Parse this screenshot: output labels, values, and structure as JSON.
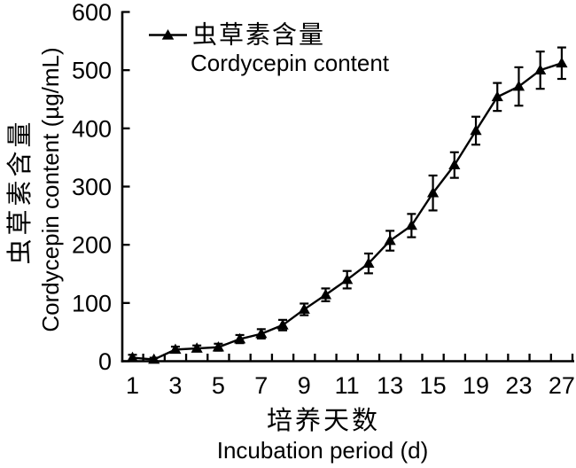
{
  "figure": {
    "background": "#ffffff",
    "ink_color": "#000000"
  },
  "legend": {
    "position": "top-left-inside",
    "marker": "line-with-filled-triangle",
    "label_zh": "虫草素含量",
    "label_en": "Cordycepin content"
  },
  "axes": {
    "y": {
      "title_zh": "虫草素含量",
      "title_en": "Cordycepin content (µg/mL)",
      "min": 0,
      "max": 600,
      "tick_step": 100,
      "tick_labels": [
        "0",
        "100",
        "200",
        "300",
        "400",
        "500",
        "600"
      ],
      "ticks_direction": "in"
    },
    "x": {
      "title_zh": "培养天数",
      "title_en": "Incubation period (d)",
      "tick_labels": [
        "1",
        "3",
        "5",
        "7",
        "9",
        "11",
        "13",
        "15",
        "19",
        "23",
        "27"
      ],
      "labeled_every_other_category": true,
      "ticks_direction": "in"
    }
  },
  "chart_data": {
    "type": "line",
    "title": "",
    "xlabel": "培养天数 / Incubation period (d)",
    "ylabel": "虫草素含量 / Cordycepin content (µg/mL)",
    "x": [
      1,
      2,
      3,
      4,
      5,
      6,
      7,
      8,
      9,
      10,
      11,
      12,
      13,
      14,
      15,
      17,
      19,
      21,
      23,
      25,
      27
    ],
    "series": [
      {
        "name": "虫草素含量 Cordycepin content",
        "marker": "filled-triangle",
        "color": "#000000",
        "values": [
          6,
          3,
          20,
          22,
          24,
          38,
          47,
          62,
          89,
          114,
          140,
          168,
          207,
          233,
          289,
          337,
          396,
          454,
          472,
          500,
          512
        ],
        "errors": [
          5,
          3,
          5,
          5,
          6,
          7,
          8,
          9,
          10,
          11,
          15,
          17,
          17,
          20,
          30,
          22,
          24,
          24,
          33,
          32,
          27
        ]
      }
    ],
    "ylim": [
      0,
      600
    ],
    "grid": false,
    "error_bars": true,
    "legend_position": "top-left-inside"
  }
}
